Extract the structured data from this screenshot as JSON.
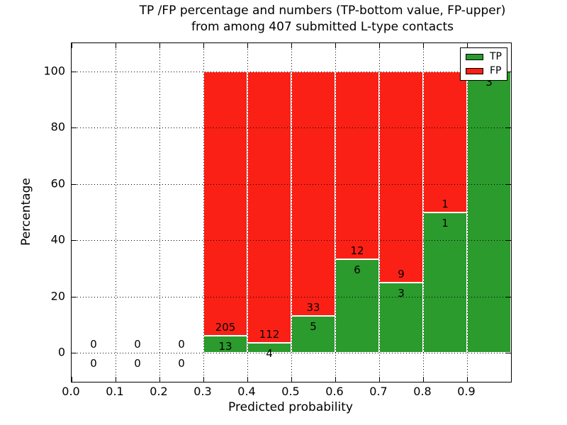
{
  "figure": {
    "title_line1": "TP /FP percentage and numbers (TP-bottom value, FP-upper)",
    "title_line2": "from among 407 submitted L-type contacts"
  },
  "chart_data": {
    "type": "bar",
    "stacked": true,
    "title": "TP /FP percentage and numbers (TP-bottom value, FP-upper) from among 407 submitted L-type contacts",
    "xlabel": "Predicted probability",
    "ylabel": "Percentage",
    "xlim": [
      0.0,
      1.0
    ],
    "ylim": [
      -10,
      110
    ],
    "grid": true,
    "total_contacts": 407,
    "x_ticks": [
      {
        "value": 0.0,
        "label": "0.0"
      },
      {
        "value": 0.1,
        "label": "0.1"
      },
      {
        "value": 0.2,
        "label": "0.2"
      },
      {
        "value": 0.3,
        "label": "0.3"
      },
      {
        "value": 0.4,
        "label": "0.4"
      },
      {
        "value": 0.5,
        "label": "0.5"
      },
      {
        "value": 0.6,
        "label": "0.6"
      },
      {
        "value": 0.7,
        "label": "0.7"
      },
      {
        "value": 0.8,
        "label": "0.8"
      },
      {
        "value": 0.9,
        "label": "0.9"
      }
    ],
    "y_ticks": [
      {
        "value": 0,
        "label": "0"
      },
      {
        "value": 20,
        "label": "20"
      },
      {
        "value": 40,
        "label": "40"
      },
      {
        "value": 60,
        "label": "60"
      },
      {
        "value": 80,
        "label": "80"
      },
      {
        "value": 100,
        "label": "100"
      }
    ],
    "bins": [
      {
        "range": [
          0.0,
          0.1
        ],
        "tp": 0,
        "fp": 0,
        "tp_pct": 0,
        "fp_pct": 0
      },
      {
        "range": [
          0.1,
          0.2
        ],
        "tp": 0,
        "fp": 0,
        "tp_pct": 0,
        "fp_pct": 0
      },
      {
        "range": [
          0.2,
          0.3
        ],
        "tp": 0,
        "fp": 0,
        "tp_pct": 0,
        "fp_pct": 0
      },
      {
        "range": [
          0.3,
          0.4
        ],
        "tp": 13,
        "fp": 205,
        "tp_pct": 5.96,
        "fp_pct": 94.04
      },
      {
        "range": [
          0.4,
          0.5
        ],
        "tp": 4,
        "fp": 112,
        "tp_pct": 3.45,
        "fp_pct": 96.55
      },
      {
        "range": [
          0.5,
          0.6
        ],
        "tp": 5,
        "fp": 33,
        "tp_pct": 13.16,
        "fp_pct": 86.84
      },
      {
        "range": [
          0.6,
          0.7
        ],
        "tp": 6,
        "fp": 12,
        "tp_pct": 33.33,
        "fp_pct": 66.67
      },
      {
        "range": [
          0.7,
          0.8
        ],
        "tp": 3,
        "fp": 9,
        "tp_pct": 25.0,
        "fp_pct": 75.0
      },
      {
        "range": [
          0.8,
          0.9
        ],
        "tp": 1,
        "fp": 1,
        "tp_pct": 50.0,
        "fp_pct": 50.0
      },
      {
        "range": [
          0.9,
          1.0
        ],
        "tp": 3,
        "fp": 0,
        "tp_pct": 100.0,
        "fp_pct": 0.0
      }
    ],
    "legend": {
      "position": "upper right",
      "entries": [
        {
          "label": "TP",
          "color": "#2a9b2c"
        },
        {
          "label": "FP",
          "color": "#fb2015"
        }
      ]
    },
    "colors": {
      "tp": "#2a9b2c",
      "fp": "#fb2015",
      "grid": "#000000",
      "bar_edge": "#ffffff"
    }
  }
}
